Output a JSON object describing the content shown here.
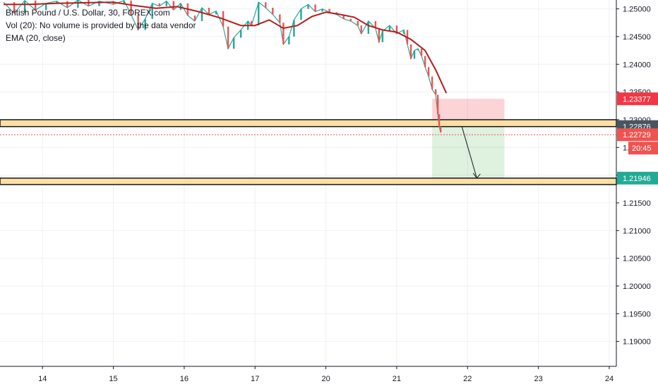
{
  "legend": {
    "symbol_line": "British Pound / U.S. Dollar, 30, FOREX.com",
    "volume_line": "Vol (20): No volume is provided by the data vendor",
    "ema_line": "EMA (20, close)"
  },
  "chart_data": {
    "type": "line",
    "title": "British Pound / U.S. Dollar, 30, FOREX.com",
    "symbol": "GBPUSD",
    "timeframe": "30",
    "x_tick_labels": [
      "14",
      "15",
      "16",
      "17",
      "20",
      "21",
      "22",
      "23",
      "24"
    ],
    "x_ticks": [
      14,
      15,
      16,
      17,
      18,
      19,
      20,
      21,
      22
    ],
    "xlim": [
      13.4,
      22.1
    ],
    "y_tick_labels": [
      "1.25000",
      "1.24500",
      "1.24000",
      "1.23500",
      "1.23000",
      "1.22500",
      "1.22000",
      "1.21500",
      "1.21000",
      "1.20500",
      "1.20000",
      "1.19500",
      "1.19000"
    ],
    "y_ticks": [
      1.25,
      1.245,
      1.24,
      1.235,
      1.23,
      1.225,
      1.22,
      1.215,
      1.21,
      1.205,
      1.2,
      1.195,
      1.19
    ],
    "ylim": [
      1.1855,
      1.2516
    ],
    "grid": true,
    "series": [
      {
        "kind": "price",
        "points": [
          [
            13.45,
            1.2512
          ],
          [
            13.6,
            1.2492
          ],
          [
            13.75,
            1.2515
          ],
          [
            13.9,
            1.2498
          ],
          [
            14.05,
            1.251
          ],
          [
            14.2,
            1.2514
          ],
          [
            14.35,
            1.2502
          ],
          [
            14.5,
            1.2516
          ],
          [
            14.65,
            1.2505
          ],
          [
            14.8,
            1.2514
          ],
          [
            15.0,
            1.2508
          ],
          [
            15.15,
            1.2515
          ],
          [
            15.25,
            1.249
          ],
          [
            15.35,
            1.2462
          ],
          [
            15.45,
            1.2482
          ],
          [
            15.55,
            1.251
          ],
          [
            15.65,
            1.2505
          ],
          [
            15.75,
            1.2514
          ],
          [
            15.85,
            1.2498
          ],
          [
            15.95,
            1.251
          ],
          [
            16.05,
            1.2488
          ],
          [
            16.15,
            1.2478
          ],
          [
            16.25,
            1.2502
          ],
          [
            16.35,
            1.249
          ],
          [
            16.45,
            1.2496
          ],
          [
            16.55,
            1.2468
          ],
          [
            16.62,
            1.2428
          ],
          [
            16.7,
            1.2448
          ],
          [
            16.8,
            1.2462
          ],
          [
            16.9,
            1.2478
          ],
          [
            16.95,
            1.247
          ],
          [
            17.05,
            1.2512
          ],
          [
            17.15,
            1.2502
          ],
          [
            17.25,
            1.249
          ],
          [
            17.35,
            1.2475
          ],
          [
            17.4,
            1.2436
          ],
          [
            17.48,
            1.245
          ],
          [
            17.55,
            1.248
          ],
          [
            17.65,
            1.25
          ],
          [
            17.75,
            1.2508
          ],
          [
            17.85,
            1.2495
          ],
          [
            17.95,
            1.25
          ],
          [
            18.05,
            1.2494
          ],
          [
            18.15,
            1.249
          ],
          [
            18.25,
            1.2482
          ],
          [
            18.35,
            1.2478
          ],
          [
            18.45,
            1.247
          ],
          [
            18.5,
            1.2455
          ],
          [
            18.6,
            1.2478
          ],
          [
            18.7,
            1.2465
          ],
          [
            18.75,
            1.244
          ],
          [
            18.8,
            1.246
          ],
          [
            18.9,
            1.247
          ],
          [
            19.0,
            1.2455
          ],
          [
            19.1,
            1.2462
          ],
          [
            19.15,
            1.2436
          ],
          [
            19.2,
            1.241
          ],
          [
            19.25,
            1.2425
          ],
          [
            19.3,
            1.2428
          ],
          [
            19.35,
            1.2415
          ],
          [
            19.4,
            1.2395
          ],
          [
            19.45,
            1.2378
          ],
          [
            19.5,
            1.2355
          ],
          [
            19.55,
            1.2345
          ],
          [
            19.58,
            1.231
          ],
          [
            19.6,
            1.2288
          ],
          [
            19.62,
            1.2277
          ]
        ]
      },
      {
        "name": "EMA (20, close)",
        "color": "#b71c1c",
        "points": [
          [
            13.45,
            1.2508
          ],
          [
            13.8,
            1.2508
          ],
          [
            14.2,
            1.251
          ],
          [
            14.6,
            1.2511
          ],
          [
            15.0,
            1.2512
          ],
          [
            15.3,
            1.2506
          ],
          [
            15.6,
            1.2501
          ],
          [
            15.9,
            1.2504
          ],
          [
            16.2,
            1.2495
          ],
          [
            16.5,
            1.2484
          ],
          [
            16.8,
            1.247
          ],
          [
            17.0,
            1.247
          ],
          [
            17.2,
            1.248
          ],
          [
            17.4,
            1.2465
          ],
          [
            17.6,
            1.247
          ],
          [
            17.8,
            1.2486
          ],
          [
            18.0,
            1.2494
          ],
          [
            18.2,
            1.249
          ],
          [
            18.4,
            1.2485
          ],
          [
            18.6,
            1.247
          ],
          [
            18.8,
            1.2462
          ],
          [
            19.0,
            1.2458
          ],
          [
            19.2,
            1.2445
          ],
          [
            19.4,
            1.2425
          ],
          [
            19.55,
            1.239
          ],
          [
            19.7,
            1.2348
          ]
        ]
      }
    ],
    "zones": [
      {
        "name": "resistance-zone",
        "y_low": 1.22876,
        "y_high": 1.23,
        "fill": "#ffe0a3"
      },
      {
        "name": "support-zone",
        "y_low": 1.2183,
        "y_high": 1.21946,
        "fill": "#ffe0a3"
      }
    ],
    "position": {
      "type": "short",
      "entry": 1.22876,
      "stop": 1.23377,
      "target": 1.21946,
      "x_start": 19.5,
      "x_end": 20.52,
      "arrow": {
        "from": [
          19.92,
          1.22876
        ],
        "to": [
          20.13,
          1.21946
        ]
      }
    },
    "current_price": 1.22729,
    "price_labels": [
      {
        "text": "1.23377",
        "value": 1.23377,
        "bg": "#f23645",
        "fg": "#ffffff"
      },
      {
        "text": "1.22876",
        "value": 1.22876,
        "bg": "#4a5560",
        "fg": "#ffffff"
      },
      {
        "text": "1.22729",
        "value": 1.22729,
        "bg": "#ef5350",
        "fg": "#ffffff"
      },
      {
        "text": "1.21946",
        "value": 1.21946,
        "bg": "#22ab94",
        "fg": "#ffffff"
      }
    ],
    "countdown": "20:45"
  }
}
